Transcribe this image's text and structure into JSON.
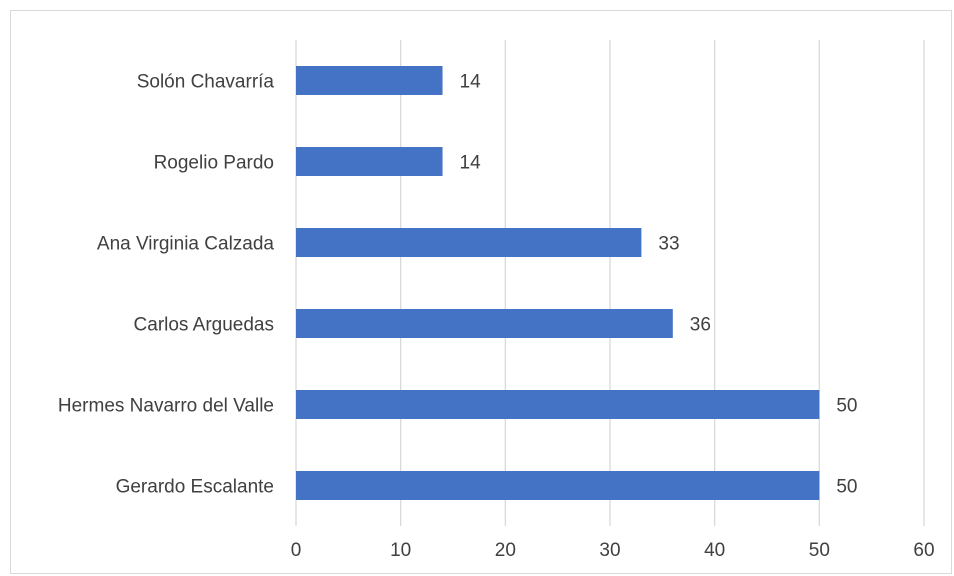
{
  "chart_data": {
    "type": "bar",
    "orientation": "horizontal",
    "categories": [
      "Solón Chavarría",
      "Rogelio Pardo",
      "Ana Virginia Calzada",
      "Carlos Arguedas",
      "Hermes Navarro del Valle",
      "Gerardo Escalante"
    ],
    "values": [
      14,
      14,
      33,
      36,
      50,
      50
    ],
    "data_labels": [
      "14",
      "14",
      "33",
      "36",
      "50",
      "50"
    ],
    "xlim": [
      0,
      60
    ],
    "x_ticks": [
      "0",
      "10",
      "20",
      "30",
      "40",
      "50",
      "60"
    ],
    "title": "",
    "xlabel": "",
    "ylabel": "",
    "grid": "vertical",
    "legend": "none",
    "colors": {
      "bar": "#4472c4",
      "grid": "#d9d9d9",
      "text": "#404040"
    }
  }
}
